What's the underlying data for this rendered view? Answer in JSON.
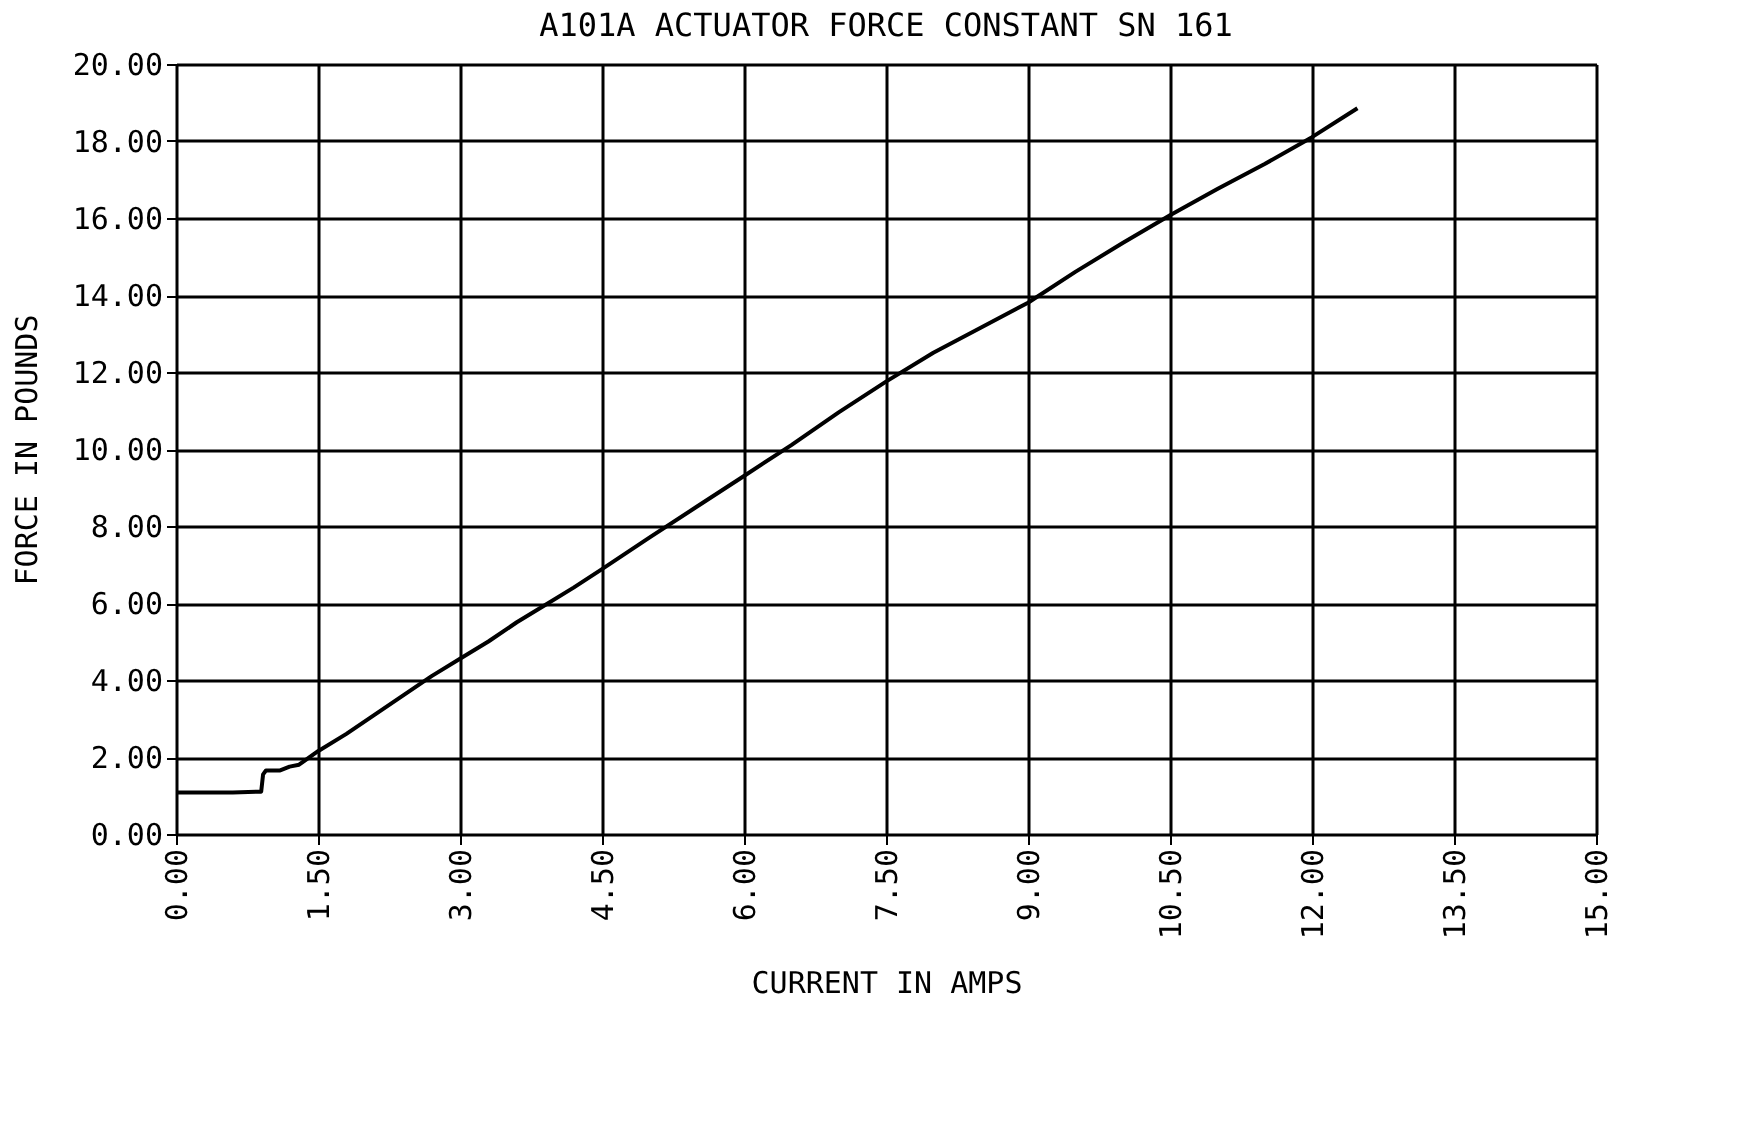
{
  "chart_data": {
    "type": "line",
    "title": "A101A ACTUATOR FORCE CONSTANT SN 161",
    "xlabel": "CURRENT IN AMPS",
    "ylabel": "FORCE IN POUNDS",
    "x": [
      0,
      0.3,
      0.6,
      0.9,
      0.92,
      0.95,
      1.1,
      1.2,
      1.3,
      1.5,
      1.8,
      2.1,
      2.4,
      2.7,
      3.0,
      3.3,
      3.6,
      3.9,
      4.2,
      4.5,
      5.0,
      5.5,
      6.0,
      6.5,
      7.0,
      7.5,
      8.0,
      8.5,
      9.0,
      9.5,
      10.0,
      10.5,
      11.0,
      11.5,
      12.0,
      12.48
    ],
    "series": [
      {
        "color": "#000000",
        "values": [
          1.08,
          1.08,
          1.08,
          1.1,
          1.55,
          1.65,
          1.65,
          1.75,
          1.8,
          2.15,
          2.6,
          3.1,
          3.6,
          4.1,
          4.55,
          5.0,
          5.5,
          5.95,
          6.4,
          6.88,
          7.7,
          8.5,
          9.3,
          10.1,
          10.95,
          11.75,
          12.5,
          13.15,
          13.8,
          14.6,
          15.35,
          16.07,
          16.75,
          17.4,
          18.1,
          18.85
        ]
      }
    ],
    "xlim": [
      0,
      15
    ],
    "ylim": [
      0,
      20
    ],
    "xticks": [
      {
        "value": 0,
        "label": "0.00"
      },
      {
        "value": 1.5,
        "label": "1.50"
      },
      {
        "value": 3,
        "label": "3.00"
      },
      {
        "value": 4.5,
        "label": "4.50"
      },
      {
        "value": 6,
        "label": "6.00"
      },
      {
        "value": 7.5,
        "label": "7.50"
      },
      {
        "value": 9,
        "label": "9.00"
      },
      {
        "value": 10.5,
        "label": "10.50"
      },
      {
        "value": 12,
        "label": "12.00"
      },
      {
        "value": 13.5,
        "label": "13.50"
      },
      {
        "value": 15,
        "label": "15.00"
      }
    ],
    "yticks": [
      {
        "value": 0,
        "label": "0.00"
      },
      {
        "value": 2,
        "label": "2.00"
      },
      {
        "value": 4,
        "label": "4.00"
      },
      {
        "value": 6,
        "label": "6.00"
      },
      {
        "value": 8,
        "label": "8.00"
      },
      {
        "value": 10,
        "label": "10.00"
      },
      {
        "value": 12,
        "label": "12.00"
      },
      {
        "value": 14,
        "label": "14.00"
      },
      {
        "value": 16,
        "label": "16.00"
      },
      {
        "value": 18,
        "label": "18.00"
      },
      {
        "value": 20,
        "label": "20.00"
      }
    ],
    "grid": true,
    "legend": false,
    "line_style": "solid",
    "marker": "none"
  }
}
